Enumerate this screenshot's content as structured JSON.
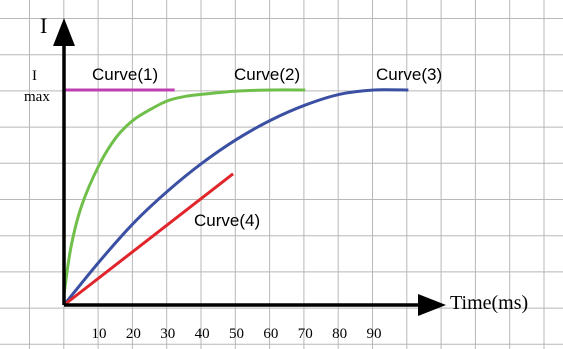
{
  "chart_data": {
    "type": "line",
    "xlabel": "Time(ms)",
    "ylabel": "I",
    "ymax_label_top": "I",
    "ymax_label_bottom": "max",
    "x_ticks": [
      10,
      20,
      30,
      40,
      50,
      60,
      70,
      80,
      90
    ],
    "xlim": [
      0,
      110
    ],
    "ylim": [
      0,
      1.35
    ],
    "grid": true,
    "i_max": 1.0,
    "series": [
      {
        "name": "Curve(1)",
        "color": "#c03fb0",
        "x": [
          0,
          32
        ],
        "y": [
          1.0,
          1.0
        ]
      },
      {
        "name": "Curve(2)",
        "color": "#6fbf4a",
        "x": [
          0,
          2,
          5,
          10,
          15,
          20,
          25,
          30,
          35,
          40,
          50,
          60,
          70
        ],
        "y": [
          0.05,
          0.27,
          0.46,
          0.65,
          0.78,
          0.86,
          0.91,
          0.95,
          0.97,
          0.98,
          0.995,
          1.0,
          1.0
        ]
      },
      {
        "name": "Curve(3)",
        "color": "#3b4fa3",
        "x": [
          0,
          10,
          20,
          30,
          40,
          50,
          60,
          70,
          80,
          90,
          100
        ],
        "y": [
          0.0,
          0.2,
          0.38,
          0.53,
          0.66,
          0.77,
          0.86,
          0.93,
          0.98,
          1.0,
          1.0
        ]
      },
      {
        "name": "Curve(4)",
        "color": "#e0252b",
        "x": [
          0,
          49
        ],
        "y": [
          0.0,
          0.61
        ]
      }
    ]
  }
}
